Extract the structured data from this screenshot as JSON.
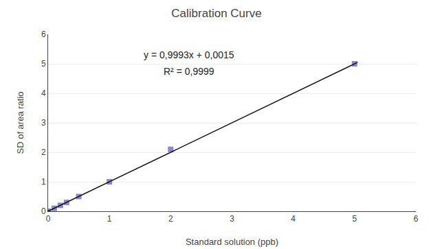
{
  "chart_data": {
    "type": "scatter",
    "title": "Calibration Curve",
    "xlabel": "Standard solution (ppb)",
    "ylabel": "SD of area ratio",
    "series": [
      {
        "type": "scatter",
        "x": [
          0.0,
          0.1,
          0.2,
          0.3,
          0.5,
          1.0,
          2.0,
          5.0
        ],
        "values": [
          0.0,
          0.1,
          0.2,
          0.3,
          0.5,
          1.0,
          2.1,
          5.0
        ],
        "color": "#8888CC",
        "marker": "square"
      },
      {
        "type": "line",
        "x": [
          0.0,
          5.05
        ],
        "values": [
          0.0015,
          5.047965
        ],
        "color": "#111111",
        "line_style": "solid"
      }
    ],
    "annotations": [
      {
        "text": "y = 0,9993x + 0,0015",
        "x": 2.3,
        "y": 5.3
      },
      {
        "text": "R² = 0,9999",
        "x": 2.3,
        "y": 4.75
      }
    ],
    "xlim": [
      0,
      6
    ],
    "ylim": [
      0,
      6
    ],
    "xticks": [
      0,
      1,
      2,
      3,
      4,
      5,
      6
    ],
    "yticks": [
      0,
      1,
      2,
      3,
      4,
      5,
      6
    ],
    "grid": "y"
  }
}
